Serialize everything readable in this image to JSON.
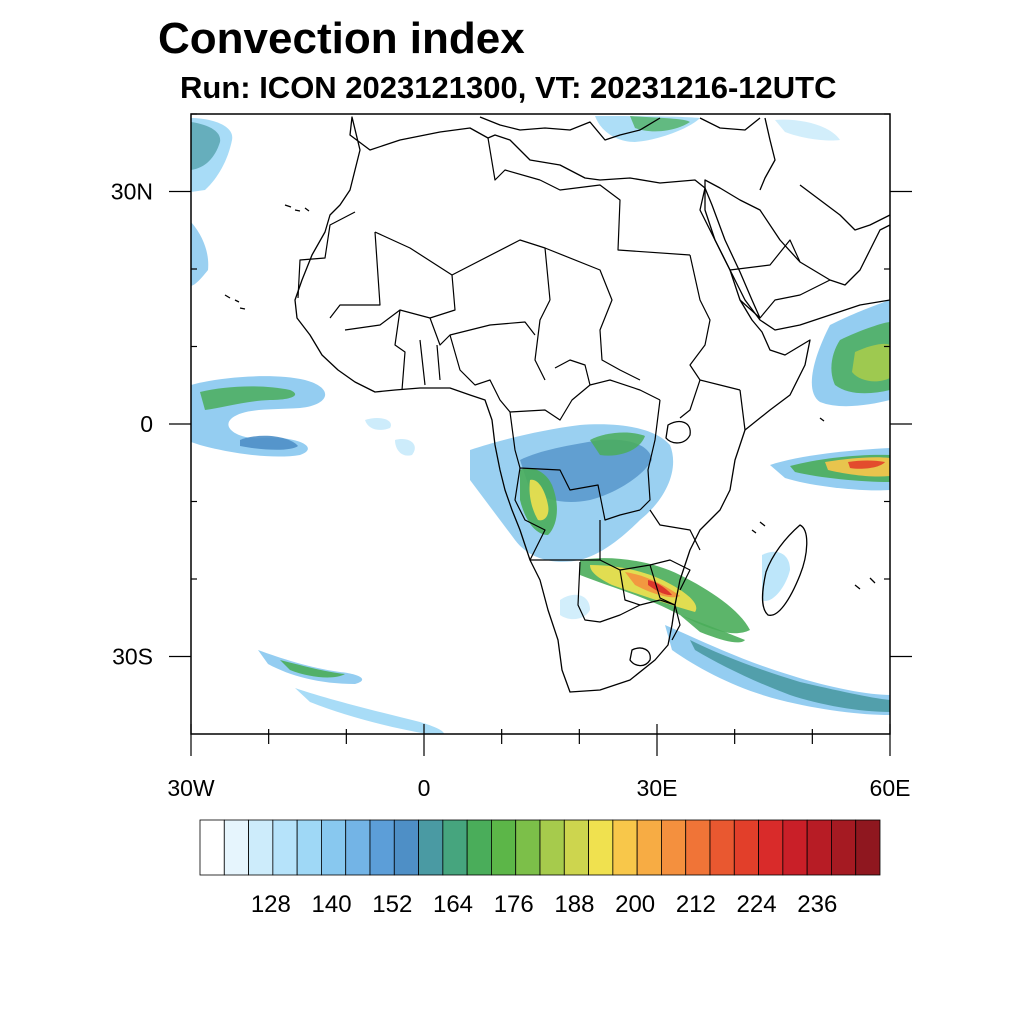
{
  "title": "Convection index",
  "subtitle": "Run: ICON 2023121300,  VT: 20231216-12UTC",
  "axes": {
    "lat_labels": [
      "30N",
      "0",
      "30S"
    ],
    "lon_labels": [
      "30W",
      "0",
      "30E",
      "60E"
    ],
    "lat_values": [
      30,
      0,
      -30
    ],
    "lon_values": [
      -30,
      0,
      30,
      60
    ],
    "lon_range": [
      -30,
      60
    ],
    "lat_range": [
      -40,
      40
    ]
  },
  "colorbar": {
    "colors": [
      "#ffffff",
      "#e6f5fd",
      "#cdecfb",
      "#b6e3fa",
      "#9fd8f6",
      "#88c8ef",
      "#73b4e6",
      "#5c9ed8",
      "#4e8fc6",
      "#4a9aa3",
      "#46a57e",
      "#4aad5a",
      "#5cb648",
      "#7cbf49",
      "#a6cb4c",
      "#cdd54e",
      "#f0e14f",
      "#f8c74a",
      "#f7ac44",
      "#f4903e",
      "#f07437",
      "#e95830",
      "#e23f2a",
      "#d92b2a",
      "#c91f28",
      "#b71c25",
      "#a51a22",
      "#8f171f"
    ],
    "tick_labels": [
      "128",
      "140",
      "152",
      "164",
      "176",
      "188",
      "200",
      "212",
      "224",
      "236"
    ]
  }
}
